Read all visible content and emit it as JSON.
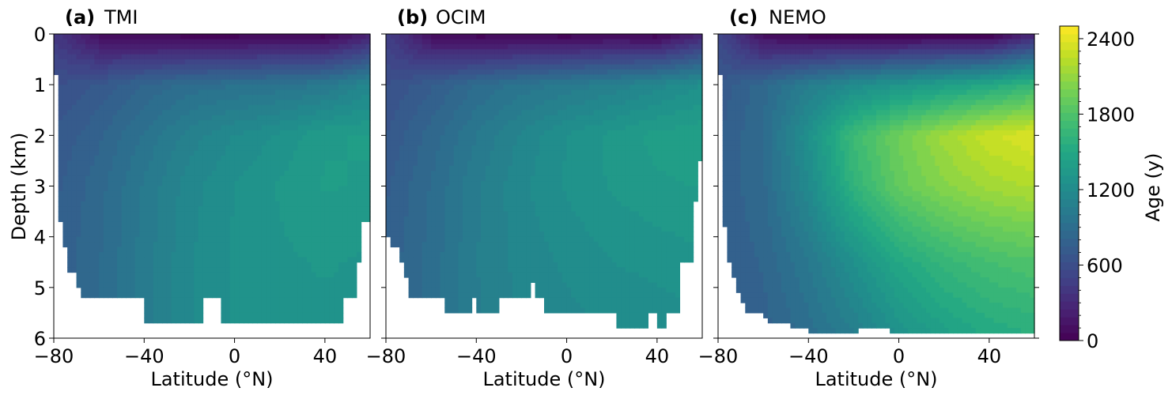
{
  "chart_data": {
    "type": "heatmap",
    "shared": {
      "xlabel": "Latitude (°N)",
      "ylabel": "Depth (km)",
      "xlim": [
        -80,
        60
      ],
      "ylim": [
        6,
        0
      ],
      "xticks": [
        -80,
        -40,
        0,
        40
      ],
      "yticks": [
        0,
        1,
        2,
        3,
        4,
        5,
        6
      ]
    },
    "panels": [
      {
        "letter": "(a)",
        "name": "TMI",
        "seafloor": [
          [
            -79,
            0.8
          ],
          [
            -77,
            3.7
          ],
          [
            -74,
            4.2
          ],
          [
            -71,
            4.7
          ],
          [
            -68,
            5.0
          ],
          [
            -62,
            5.2
          ],
          [
            -55,
            5.2
          ],
          [
            -54,
            5.7
          ],
          [
            -52,
            5.2
          ],
          [
            -40,
            5.2
          ],
          [
            -38,
            5.7
          ],
          [
            -15,
            5.7
          ],
          [
            -14,
            5.2
          ],
          [
            -7,
            5.2
          ],
          [
            -6,
            5.7
          ],
          [
            30,
            5.7
          ],
          [
            42,
            5.7
          ],
          [
            47,
            5.7
          ],
          [
            48,
            5.2
          ],
          [
            53,
            5.2
          ],
          [
            55,
            4.5
          ],
          [
            58,
            3.7
          ],
          [
            60,
            3.7
          ]
        ],
        "field": [
          {
            "lat": -80,
            "d0": 430,
            "d1": 620,
            "d2": 690,
            "d3": 730,
            "d4": 760,
            "d5": 780
          },
          {
            "lat": -60,
            "d0": 120,
            "d1": 700,
            "d2": 800,
            "d3": 850,
            "d4": 870,
            "d5": 890
          },
          {
            "lat": -40,
            "d0": 70,
            "d1": 820,
            "d2": 950,
            "d3": 1010,
            "d4": 1030,
            "d5": 1040
          },
          {
            "lat": -20,
            "d0": 60,
            "d1": 900,
            "d2": 1090,
            "d3": 1160,
            "d4": 1180,
            "d5": 1180
          },
          {
            "lat": 0,
            "d0": 60,
            "d1": 930,
            "d2": 1190,
            "d3": 1250,
            "d4": 1260,
            "d5": 1260
          },
          {
            "lat": 20,
            "d0": 80,
            "d1": 960,
            "d2": 1260,
            "d3": 1320,
            "d4": 1300,
            "d5": 1290
          },
          {
            "lat": 40,
            "d0": 60,
            "d1": 1000,
            "d2": 1370,
            "d3": 1380,
            "d4": 1320,
            "d5": 1290
          },
          {
            "lat": 60,
            "d0": 260,
            "d1": 1150,
            "d2": 1380,
            "d3": 1370,
            "d4": 1300,
            "d5": 1290
          }
        ]
      },
      {
        "letter": "(b)",
        "name": "OCIM",
        "seafloor": [
          [
            -79,
            4.0
          ],
          [
            -75,
            4.2
          ],
          [
            -73,
            4.5
          ],
          [
            -71,
            4.8
          ],
          [
            -67,
            5.2
          ],
          [
            -55,
            5.2
          ],
          [
            -54,
            5.5
          ],
          [
            -43,
            5.5
          ],
          [
            -42,
            5.2
          ],
          [
            -40,
            5.2
          ],
          [
            -39,
            5.5
          ],
          [
            -31,
            5.5
          ],
          [
            -30,
            5.2
          ],
          [
            -16,
            5.2
          ],
          [
            -15,
            4.9
          ],
          [
            -13,
            5.2
          ],
          [
            -10,
            5.2
          ],
          [
            -8,
            5.5
          ],
          [
            22,
            5.5
          ],
          [
            23,
            5.8
          ],
          [
            36,
            5.8
          ],
          [
            37,
            5.5
          ],
          [
            39,
            5.5
          ],
          [
            40,
            5.8
          ],
          [
            44,
            5.8
          ],
          [
            45,
            5.5
          ],
          [
            49,
            5.5
          ],
          [
            50,
            4.8
          ],
          [
            53,
            4.5
          ],
          [
            56,
            4.5
          ],
          [
            57,
            3.3
          ],
          [
            59,
            2.5
          ],
          [
            60,
            2.5
          ]
        ],
        "field": [
          {
            "lat": -80,
            "d0": 480,
            "d1": 620,
            "d2": 690,
            "d3": 740,
            "d4": 770,
            "d5": 790
          },
          {
            "lat": -60,
            "d0": 120,
            "d1": 740,
            "d2": 840,
            "d3": 880,
            "d4": 900,
            "d5": 910
          },
          {
            "lat": -40,
            "d0": 60,
            "d1": 880,
            "d2": 1000,
            "d3": 1050,
            "d4": 1060,
            "d5": 1050
          },
          {
            "lat": -20,
            "d0": 70,
            "d1": 960,
            "d2": 1140,
            "d3": 1170,
            "d4": 1150,
            "d5": 1130
          },
          {
            "lat": 0,
            "d0": 60,
            "d1": 1020,
            "d2": 1250,
            "d3": 1260,
            "d4": 1200,
            "d5": 1160
          },
          {
            "lat": 20,
            "d0": 90,
            "d1": 1080,
            "d2": 1330,
            "d3": 1320,
            "d4": 1250,
            "d5": 1180
          },
          {
            "lat": 40,
            "d0": 60,
            "d1": 1160,
            "d2": 1400,
            "d3": 1360,
            "d4": 1270,
            "d5": 1200
          },
          {
            "lat": 60,
            "d0": 300,
            "d1": 1250,
            "d2": 1420,
            "d3": 1380,
            "d4": 1300,
            "d5": 1220
          }
        ]
      },
      {
        "letter": "(c)",
        "name": "NEMO",
        "seafloor": [
          [
            -79,
            0.8
          ],
          [
            -78,
            2.5
          ],
          [
            -77,
            3.8
          ],
          [
            -76,
            4.3
          ],
          [
            -74,
            4.5
          ],
          [
            -72,
            4.8
          ],
          [
            -70,
            5.1
          ],
          [
            -68,
            5.3
          ],
          [
            -65,
            5.5
          ],
          [
            -60,
            5.5
          ],
          [
            -58,
            5.6
          ],
          [
            -55,
            5.7
          ],
          [
            -53,
            5.7
          ],
          [
            -48,
            5.7
          ],
          [
            -40,
            5.8
          ],
          [
            -35,
            5.9
          ],
          [
            -18,
            5.9
          ],
          [
            -15,
            5.8
          ],
          [
            -5,
            5.8
          ],
          [
            0,
            5.9
          ],
          [
            60,
            5.9
          ]
        ],
        "field": [
          {
            "lat": -80,
            "d0": 560,
            "d1": 700,
            "d2": 740,
            "d3": 760,
            "d4": 760,
            "d5": 760
          },
          {
            "lat": -60,
            "d0": 120,
            "d1": 850,
            "d2": 880,
            "d3": 860,
            "d4": 820,
            "d5": 780
          },
          {
            "lat": -40,
            "d0": 60,
            "d1": 1050,
            "d2": 1250,
            "d3": 1180,
            "d4": 1000,
            "d5": 900
          },
          {
            "lat": -20,
            "d0": 50,
            "d1": 1200,
            "d2": 1700,
            "d3": 1620,
            "d4": 1250,
            "d5": 1050
          },
          {
            "lat": 0,
            "d0": 40,
            "d1": 1300,
            "d2": 1950,
            "d3": 1900,
            "d4": 1500,
            "d5": 1250
          },
          {
            "lat": 20,
            "d0": 60,
            "d1": 1400,
            "d2": 2150,
            "d3": 2050,
            "d4": 1650,
            "d5": 1400
          },
          {
            "lat": 40,
            "d0": 40,
            "d1": 1500,
            "d2": 2300,
            "d3": 2150,
            "d4": 1750,
            "d5": 1500
          },
          {
            "lat": 60,
            "d0": 320,
            "d1": 1650,
            "d2": 2380,
            "d3": 2200,
            "d4": 1800,
            "d5": 1550
          }
        ]
      }
    ],
    "colorbar": {
      "label": "Age (y)",
      "min": 0,
      "max": 2500,
      "ticks": [
        0,
        600,
        1200,
        1800,
        2400
      ],
      "levels": 40,
      "colormap": "viridis"
    }
  }
}
